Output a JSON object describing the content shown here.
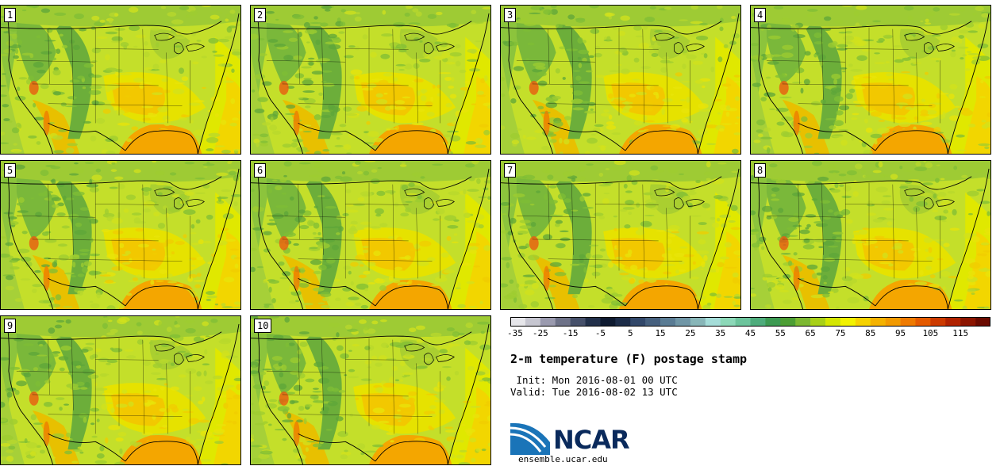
{
  "members": [
    {
      "label": "1"
    },
    {
      "label": "2"
    },
    {
      "label": "3"
    },
    {
      "label": "4"
    },
    {
      "label": "5"
    },
    {
      "label": "6"
    },
    {
      "label": "7"
    },
    {
      "label": "8"
    },
    {
      "label": "9"
    },
    {
      "label": "10"
    }
  ],
  "colorbar": {
    "colors": [
      "#e6e6ea",
      "#c6c6d0",
      "#9a9aae",
      "#6e7288",
      "#46506a",
      "#22304a",
      "#0e1a30",
      "#1c2c48",
      "#32486a",
      "#46607e",
      "#5a7c94",
      "#7096a6",
      "#88b6b8",
      "#a4dcd8",
      "#8cd8b8",
      "#6cc49c",
      "#4eac7c",
      "#3c9a52",
      "#4c9e34",
      "#7cb832",
      "#a8d018",
      "#d4e602",
      "#f2f200",
      "#f6d200",
      "#f4b200",
      "#f29a00",
      "#ee7a00",
      "#e45a00",
      "#cc3a00",
      "#b02200",
      "#8c1400",
      "#6a0a00"
    ],
    "ticks": [
      "-35",
      "-25",
      "-15",
      "-5",
      "5",
      "15",
      "25",
      "35",
      "45",
      "55",
      "65",
      "75",
      "85",
      "95",
      "105",
      "115"
    ]
  },
  "title": "2-m temperature (F) postage stamp",
  "init": " Init: Mon 2016-08-01 00 UTC",
  "valid": "Valid: Tue 2016-08-02 13 UTC",
  "logo_text": "NCAR",
  "site": "ensemble.ucar.edu"
}
